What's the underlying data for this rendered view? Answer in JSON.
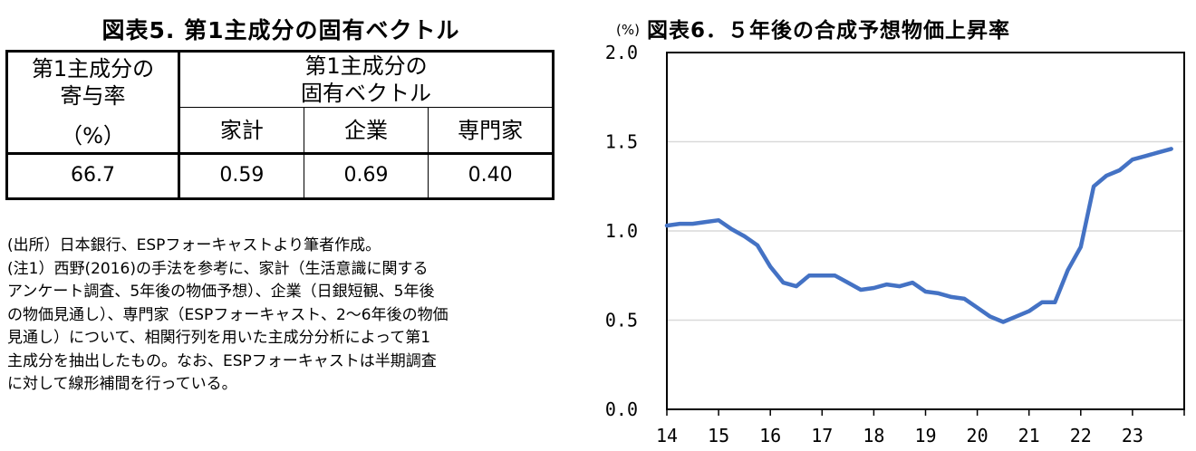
{
  "left": {
    "title": "図表5. 第1主成分の固有ベクトル",
    "table": {
      "header_contribution": [
        "第1主成分の",
        "寄与率",
        "（%）"
      ],
      "header_eigen": [
        "第1主成分の",
        "固有ベクトル"
      ],
      "columns": [
        "家計",
        "企業",
        "専門家"
      ],
      "row": {
        "contribution": "66.7",
        "values": [
          "0.59",
          "0.69",
          "0.40"
        ]
      }
    },
    "notes": [
      "(出所）日本銀行、ESPフォーキャストより筆者作成。",
      "(注1）西野(2016)の手法を参考に、家計（生活意識に関する",
      "アンケート調査、5年後の物価予想）、企業（日銀短観、5年後",
      "の物価見通し）、専門家（ESPフォーキャスト、2～6年後の物価",
      "見通し）について、相関行列を用いた主成分分析によって第1",
      "主成分を抽出したもの。なお、ESPフォーキャストは半期調査",
      "に対して線形補間を行っている。"
    ]
  },
  "chart_data": {
    "type": "line",
    "title": "図表6．５年後の合成予想物価上昇率",
    "unit_label": "(%)",
    "xlabel": "",
    "ylabel": "",
    "xlim": [
      14,
      24
    ],
    "ylim": [
      0,
      2
    ],
    "x_ticks": [
      "14",
      "15",
      "16",
      "17",
      "18",
      "19",
      "20",
      "21",
      "22",
      "23"
    ],
    "y_ticks": [
      "0.0",
      "0.5",
      "1.0",
      "1.5",
      "2.0"
    ],
    "grid": "horizontal",
    "legend": "none",
    "color": "#4472C4",
    "series": [
      {
        "x": [
          14.0,
          14.25,
          14.5,
          14.75,
          15.0,
          15.25,
          15.5,
          15.75,
          16.0,
          16.25,
          16.5,
          16.75,
          17.0,
          17.25,
          17.5,
          17.75,
          18.0,
          18.25,
          18.5,
          18.75,
          19.0,
          19.25,
          19.5,
          19.75,
          20.0,
          20.25,
          20.5,
          20.75,
          21.0,
          21.25,
          21.5,
          21.75,
          22.0,
          22.25,
          22.5,
          22.75,
          23.0,
          23.25,
          23.5,
          23.75
        ],
        "values": [
          1.03,
          1.04,
          1.04,
          1.05,
          1.06,
          1.01,
          0.97,
          0.92,
          0.8,
          0.71,
          0.69,
          0.75,
          0.75,
          0.75,
          0.71,
          0.67,
          0.68,
          0.7,
          0.69,
          0.71,
          0.66,
          0.65,
          0.63,
          0.62,
          0.57,
          0.52,
          0.49,
          0.52,
          0.55,
          0.6,
          0.6,
          0.78,
          0.91,
          1.25,
          1.31,
          1.34,
          1.4,
          1.42,
          1.44,
          1.46
        ]
      }
    ]
  }
}
